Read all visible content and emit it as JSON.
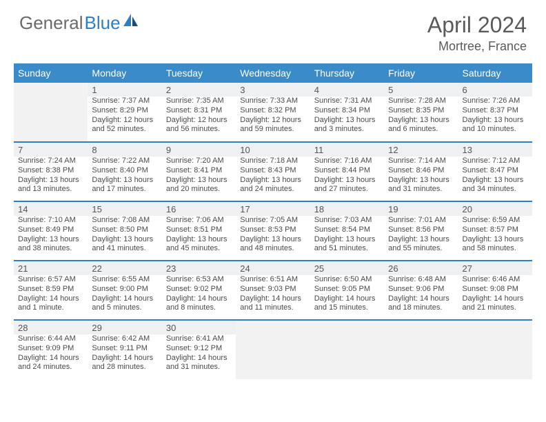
{
  "brand": {
    "text_gray": "General",
    "text_blue": "Blue",
    "blue": "#2f7ec0",
    "gray": "#6a6a6a"
  },
  "header": {
    "month": "April 2024",
    "location": "Mortree, France"
  },
  "colors": {
    "header_row_bg": "#3a8bc9",
    "header_row_text": "#ffffff",
    "daynum_bg": "#eef0f1",
    "separator": "#2f7ec0",
    "cell_border": "#e4e4e4",
    "empty_bg": "#f2f2f2"
  },
  "week_days": [
    "Sunday",
    "Monday",
    "Tuesday",
    "Wednesday",
    "Thursday",
    "Friday",
    "Saturday"
  ],
  "first_weekday_index": 1,
  "days": [
    {
      "n": 1,
      "sr": "7:37 AM",
      "ss": "8:29 PM",
      "dl": "12 hours and 52 minutes."
    },
    {
      "n": 2,
      "sr": "7:35 AM",
      "ss": "8:31 PM",
      "dl": "12 hours and 56 minutes."
    },
    {
      "n": 3,
      "sr": "7:33 AM",
      "ss": "8:32 PM",
      "dl": "12 hours and 59 minutes."
    },
    {
      "n": 4,
      "sr": "7:31 AM",
      "ss": "8:34 PM",
      "dl": "13 hours and 3 minutes."
    },
    {
      "n": 5,
      "sr": "7:28 AM",
      "ss": "8:35 PM",
      "dl": "13 hours and 6 minutes."
    },
    {
      "n": 6,
      "sr": "7:26 AM",
      "ss": "8:37 PM",
      "dl": "13 hours and 10 minutes."
    },
    {
      "n": 7,
      "sr": "7:24 AM",
      "ss": "8:38 PM",
      "dl": "13 hours and 13 minutes."
    },
    {
      "n": 8,
      "sr": "7:22 AM",
      "ss": "8:40 PM",
      "dl": "13 hours and 17 minutes."
    },
    {
      "n": 9,
      "sr": "7:20 AM",
      "ss": "8:41 PM",
      "dl": "13 hours and 20 minutes."
    },
    {
      "n": 10,
      "sr": "7:18 AM",
      "ss": "8:43 PM",
      "dl": "13 hours and 24 minutes."
    },
    {
      "n": 11,
      "sr": "7:16 AM",
      "ss": "8:44 PM",
      "dl": "13 hours and 27 minutes."
    },
    {
      "n": 12,
      "sr": "7:14 AM",
      "ss": "8:46 PM",
      "dl": "13 hours and 31 minutes."
    },
    {
      "n": 13,
      "sr": "7:12 AM",
      "ss": "8:47 PM",
      "dl": "13 hours and 34 minutes."
    },
    {
      "n": 14,
      "sr": "7:10 AM",
      "ss": "8:49 PM",
      "dl": "13 hours and 38 minutes."
    },
    {
      "n": 15,
      "sr": "7:08 AM",
      "ss": "8:50 PM",
      "dl": "13 hours and 41 minutes."
    },
    {
      "n": 16,
      "sr": "7:06 AM",
      "ss": "8:51 PM",
      "dl": "13 hours and 45 minutes."
    },
    {
      "n": 17,
      "sr": "7:05 AM",
      "ss": "8:53 PM",
      "dl": "13 hours and 48 minutes."
    },
    {
      "n": 18,
      "sr": "7:03 AM",
      "ss": "8:54 PM",
      "dl": "13 hours and 51 minutes."
    },
    {
      "n": 19,
      "sr": "7:01 AM",
      "ss": "8:56 PM",
      "dl": "13 hours and 55 minutes."
    },
    {
      "n": 20,
      "sr": "6:59 AM",
      "ss": "8:57 PM",
      "dl": "13 hours and 58 minutes."
    },
    {
      "n": 21,
      "sr": "6:57 AM",
      "ss": "8:59 PM",
      "dl": "14 hours and 1 minute."
    },
    {
      "n": 22,
      "sr": "6:55 AM",
      "ss": "9:00 PM",
      "dl": "14 hours and 5 minutes."
    },
    {
      "n": 23,
      "sr": "6:53 AM",
      "ss": "9:02 PM",
      "dl": "14 hours and 8 minutes."
    },
    {
      "n": 24,
      "sr": "6:51 AM",
      "ss": "9:03 PM",
      "dl": "14 hours and 11 minutes."
    },
    {
      "n": 25,
      "sr": "6:50 AM",
      "ss": "9:05 PM",
      "dl": "14 hours and 15 minutes."
    },
    {
      "n": 26,
      "sr": "6:48 AM",
      "ss": "9:06 PM",
      "dl": "14 hours and 18 minutes."
    },
    {
      "n": 27,
      "sr": "6:46 AM",
      "ss": "9:08 PM",
      "dl": "14 hours and 21 minutes."
    },
    {
      "n": 28,
      "sr": "6:44 AM",
      "ss": "9:09 PM",
      "dl": "14 hours and 24 minutes."
    },
    {
      "n": 29,
      "sr": "6:42 AM",
      "ss": "9:11 PM",
      "dl": "14 hours and 28 minutes."
    },
    {
      "n": 30,
      "sr": "6:41 AM",
      "ss": "9:12 PM",
      "dl": "14 hours and 31 minutes."
    }
  ],
  "labels": {
    "sunrise": "Sunrise:",
    "sunset": "Sunset:",
    "daylight": "Daylight:"
  }
}
